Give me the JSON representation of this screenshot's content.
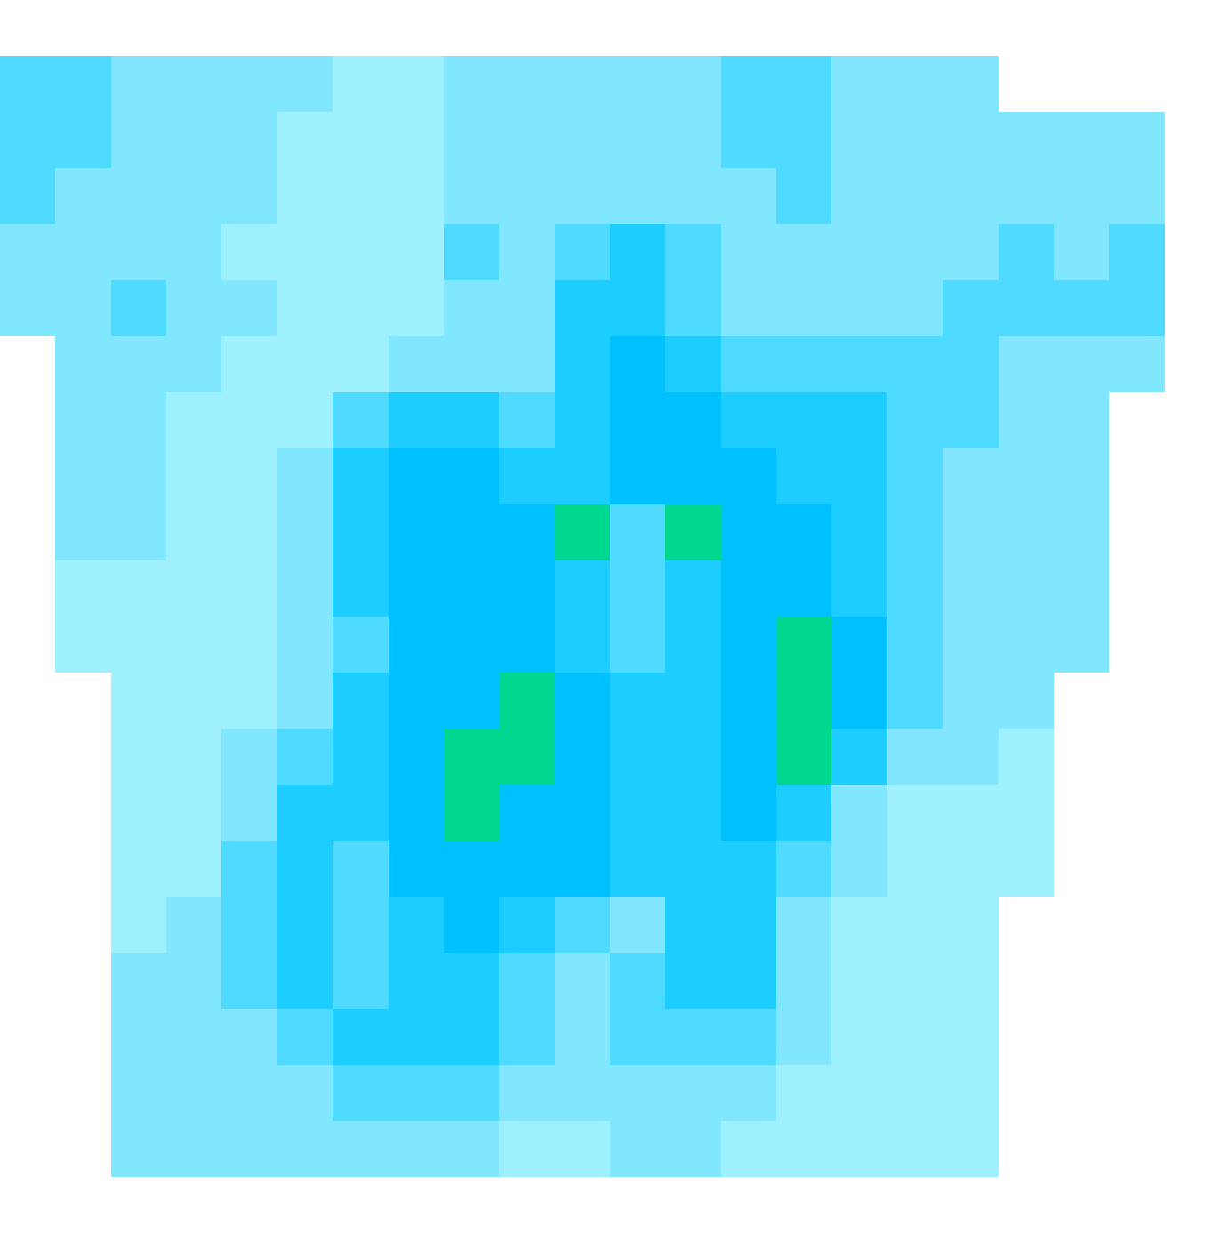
{
  "chart_data": {
    "type": "heatmap",
    "grid": false,
    "tick_labels": false,
    "zlim": [
      1,
      6
    ],
    "colors": [
      "#9ff1ff",
      "#80e7ff",
      "#4edbff",
      "#1dcdff",
      "#00c1ff",
      "#00d890"
    ],
    "z": [
      [
        null,
        null,
        null,
        null,
        null,
        null,
        null,
        null,
        null,
        null,
        null,
        null,
        null,
        null,
        null,
        null,
        null,
        null,
        null,
        null,
        null,
        null
      ],
      [
        3,
        3,
        2,
        2,
        2,
        2,
        1,
        1,
        2,
        2,
        2,
        2,
        2,
        3,
        3,
        2,
        2,
        2,
        null,
        null,
        null,
        null
      ],
      [
        3,
        3,
        2,
        2,
        2,
        1,
        1,
        1,
        2,
        2,
        2,
        2,
        2,
        3,
        3,
        2,
        2,
        2,
        2,
        2,
        2,
        null
      ],
      [
        3,
        2,
        2,
        2,
        2,
        1,
        1,
        1,
        2,
        2,
        2,
        2,
        2,
        2,
        3,
        2,
        2,
        2,
        2,
        2,
        2,
        null
      ],
      [
        2,
        2,
        2,
        2,
        1,
        1,
        1,
        1,
        3,
        2,
        3,
        4,
        3,
        2,
        2,
        2,
        2,
        2,
        3,
        2,
        3,
        null
      ],
      [
        2,
        2,
        3,
        2,
        2,
        1,
        1,
        1,
        2,
        2,
        4,
        4,
        3,
        2,
        2,
        2,
        2,
        3,
        3,
        3,
        3,
        null
      ],
      [
        null,
        2,
        2,
        2,
        1,
        1,
        1,
        2,
        2,
        2,
        4,
        5,
        4,
        3,
        3,
        3,
        3,
        3,
        2,
        2,
        2,
        null
      ],
      [
        null,
        2,
        2,
        1,
        1,
        1,
        3,
        4,
        4,
        3,
        4,
        5,
        5,
        4,
        4,
        4,
        3,
        3,
        2,
        2,
        null,
        null
      ],
      [
        null,
        2,
        2,
        1,
        1,
        2,
        4,
        5,
        5,
        4,
        4,
        5,
        5,
        5,
        4,
        4,
        3,
        2,
        2,
        2,
        null,
        null
      ],
      [
        null,
        2,
        2,
        1,
        1,
        2,
        4,
        5,
        5,
        5,
        6,
        3,
        6,
        5,
        5,
        4,
        3,
        2,
        2,
        2,
        null,
        null
      ],
      [
        null,
        1,
        1,
        1,
        1,
        2,
        4,
        5,
        5,
        5,
        4,
        3,
        4,
        5,
        5,
        4,
        3,
        2,
        2,
        2,
        null,
        null
      ],
      [
        null,
        1,
        1,
        1,
        1,
        2,
        3,
        5,
        5,
        5,
        4,
        3,
        4,
        5,
        6,
        5,
        3,
        2,
        2,
        2,
        null,
        null
      ],
      [
        null,
        null,
        1,
        1,
        1,
        2,
        4,
        5,
        5,
        6,
        5,
        4,
        4,
        5,
        6,
        5,
        3,
        2,
        2,
        null,
        null,
        null
      ],
      [
        null,
        null,
        1,
        1,
        2,
        3,
        4,
        5,
        6,
        6,
        5,
        4,
        4,
        5,
        6,
        4,
        2,
        2,
        1,
        null,
        null,
        null
      ],
      [
        null,
        null,
        1,
        1,
        2,
        4,
        4,
        5,
        6,
        5,
        5,
        4,
        4,
        5,
        4,
        2,
        1,
        1,
        1,
        null,
        null,
        null
      ],
      [
        null,
        null,
        1,
        1,
        3,
        4,
        3,
        5,
        5,
        5,
        5,
        4,
        4,
        4,
        3,
        2,
        1,
        1,
        1,
        null,
        null,
        null
      ],
      [
        null,
        null,
        1,
        2,
        3,
        4,
        3,
        4,
        5,
        4,
        3,
        2,
        4,
        4,
        2,
        1,
        1,
        1,
        null,
        null,
        null,
        null
      ],
      [
        null,
        null,
        2,
        2,
        3,
        4,
        3,
        4,
        4,
        3,
        2,
        3,
        4,
        4,
        2,
        1,
        1,
        1,
        null,
        null,
        null,
        null
      ],
      [
        null,
        null,
        2,
        2,
        2,
        3,
        4,
        4,
        4,
        3,
        2,
        3,
        3,
        3,
        2,
        1,
        1,
        1,
        null,
        null,
        null,
        null
      ],
      [
        null,
        null,
        2,
        2,
        2,
        2,
        3,
        3,
        3,
        2,
        2,
        2,
        2,
        2,
        1,
        1,
        1,
        1,
        null,
        null,
        null,
        null
      ],
      [
        null,
        null,
        2,
        2,
        2,
        2,
        2,
        2,
        2,
        1,
        1,
        2,
        2,
        1,
        1,
        1,
        1,
        1,
        null,
        null,
        null,
        null
      ],
      [
        null,
        null,
        null,
        null,
        null,
        null,
        null,
        null,
        null,
        null,
        null,
        null,
        null,
        null,
        null,
        null,
        null,
        null,
        null,
        null,
        null,
        null
      ]
    ]
  }
}
